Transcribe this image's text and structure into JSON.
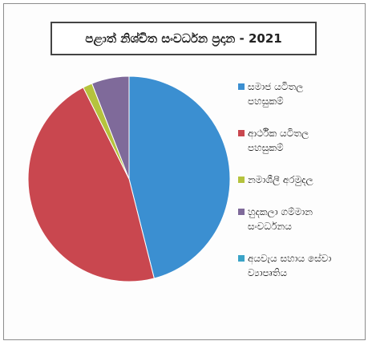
{
  "chart_data": {
    "type": "pie",
    "title": "පළාත් නිශ්චිත සංවර්ධන ප්‍රදාන - 2021",
    "slices": [
      {
        "label": "සමාජ යටිතල\nපහසුකම්",
        "value": 46.0,
        "color": "#3b8fd1"
      },
      {
        "label": "ආර්ථික යටිතල\nපහසුකම්",
        "value": 46.5,
        "color": "#c9474f"
      },
      {
        "label": "නමාශීලී අරමුදල",
        "value": 1.5,
        "color": "#b5c33d"
      },
      {
        "label": "හුදකලා ගම්මාන\nසංවර්ධනය",
        "value": 6.0,
        "color": "#7f6a9a"
      },
      {
        "label": "අයවැය සහාය සේවා\nව්‍යාපෘතිය",
        "value": 0.0,
        "color": "#3aa3c7"
      }
    ],
    "legend_position": "right"
  }
}
